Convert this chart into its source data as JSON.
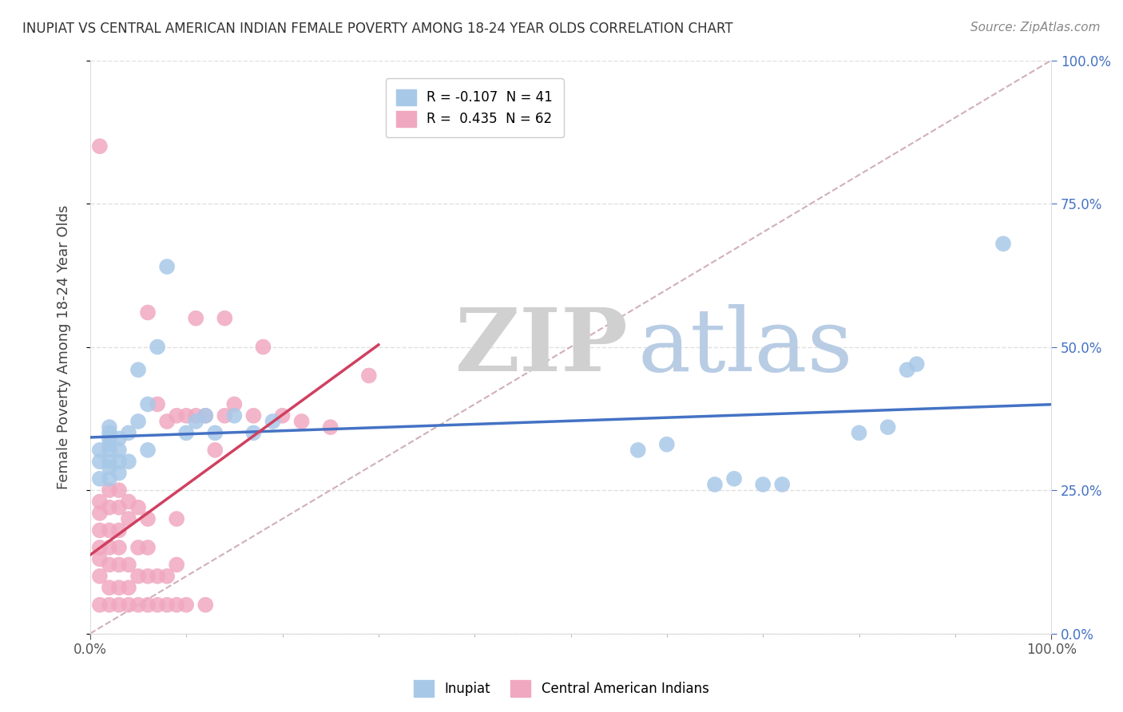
{
  "title": "INUPIAT VS CENTRAL AMERICAN INDIAN FEMALE POVERTY AMONG 18-24 YEAR OLDS CORRELATION CHART",
  "source": "Source: ZipAtlas.com",
  "ylabel": "Female Poverty Among 18-24 Year Olds",
  "xlim": [
    0,
    1
  ],
  "ylim": [
    0,
    1
  ],
  "xtick_positions": [
    0,
    1
  ],
  "xtick_labels": [
    "0.0%",
    "100.0%"
  ],
  "ytick_values": [
    0,
    0.25,
    0.5,
    0.75,
    1.0
  ],
  "ytick_labels": [
    "0.0%",
    "25.0%",
    "50.0%",
    "75.0%",
    "100.0%"
  ],
  "inupiat_R": -0.107,
  "inupiat_N": 41,
  "central_american_R": 0.435,
  "central_american_N": 62,
  "inupiat_color": "#a8c8e8",
  "central_american_color": "#f0a8c0",
  "inupiat_line_color": "#4472c4",
  "central_american_line_color": "#d04060",
  "reference_line_color": "#d0b0b8",
  "watermark_zip": "ZIP",
  "watermark_atlas": "atlas",
  "watermark_color_zip": "#d8d8d8",
  "watermark_color_atlas": "#b0c8e0",
  "background_color": "#ffffff",
  "inupiat_x": [
    0.01,
    0.01,
    0.01,
    0.02,
    0.02,
    0.02,
    0.02,
    0.02,
    0.02,
    0.02,
    0.02,
    0.03,
    0.03,
    0.03,
    0.03,
    0.04,
    0.04,
    0.05,
    0.05,
    0.06,
    0.06,
    0.07,
    0.08,
    0.1,
    0.11,
    0.12,
    0.13,
    0.15,
    0.17,
    0.19,
    0.57,
    0.6,
    0.65,
    0.67,
    0.7,
    0.72,
    0.8,
    0.83,
    0.85,
    0.86,
    0.95
  ],
  "inupiat_y": [
    0.27,
    0.3,
    0.32,
    0.27,
    0.29,
    0.3,
    0.32,
    0.33,
    0.34,
    0.35,
    0.36,
    0.28,
    0.3,
    0.32,
    0.34,
    0.3,
    0.35,
    0.37,
    0.46,
    0.32,
    0.4,
    0.5,
    0.64,
    0.35,
    0.37,
    0.38,
    0.35,
    0.38,
    0.35,
    0.37,
    0.32,
    0.33,
    0.26,
    0.27,
    0.26,
    0.26,
    0.35,
    0.36,
    0.46,
    0.47,
    0.68
  ],
  "central_american_x": [
    0.01,
    0.01,
    0.01,
    0.01,
    0.01,
    0.01,
    0.01,
    0.01,
    0.02,
    0.02,
    0.02,
    0.02,
    0.02,
    0.02,
    0.02,
    0.03,
    0.03,
    0.03,
    0.03,
    0.03,
    0.03,
    0.03,
    0.04,
    0.04,
    0.04,
    0.04,
    0.04,
    0.05,
    0.05,
    0.05,
    0.05,
    0.06,
    0.06,
    0.06,
    0.06,
    0.06,
    0.07,
    0.07,
    0.07,
    0.08,
    0.08,
    0.08,
    0.09,
    0.09,
    0.09,
    0.09,
    0.1,
    0.1,
    0.11,
    0.11,
    0.12,
    0.12,
    0.13,
    0.14,
    0.14,
    0.15,
    0.17,
    0.18,
    0.2,
    0.22,
    0.25,
    0.29
  ],
  "central_american_y": [
    0.05,
    0.1,
    0.13,
    0.15,
    0.18,
    0.21,
    0.23,
    0.85,
    0.05,
    0.08,
    0.12,
    0.15,
    0.18,
    0.22,
    0.25,
    0.05,
    0.08,
    0.12,
    0.15,
    0.18,
    0.22,
    0.25,
    0.05,
    0.08,
    0.12,
    0.2,
    0.23,
    0.05,
    0.1,
    0.15,
    0.22,
    0.05,
    0.1,
    0.15,
    0.2,
    0.56,
    0.05,
    0.1,
    0.4,
    0.05,
    0.1,
    0.37,
    0.05,
    0.12,
    0.2,
    0.38,
    0.05,
    0.38,
    0.38,
    0.55,
    0.05,
    0.38,
    0.32,
    0.38,
    0.55,
    0.4,
    0.38,
    0.5,
    0.38,
    0.37,
    0.36,
    0.45
  ]
}
